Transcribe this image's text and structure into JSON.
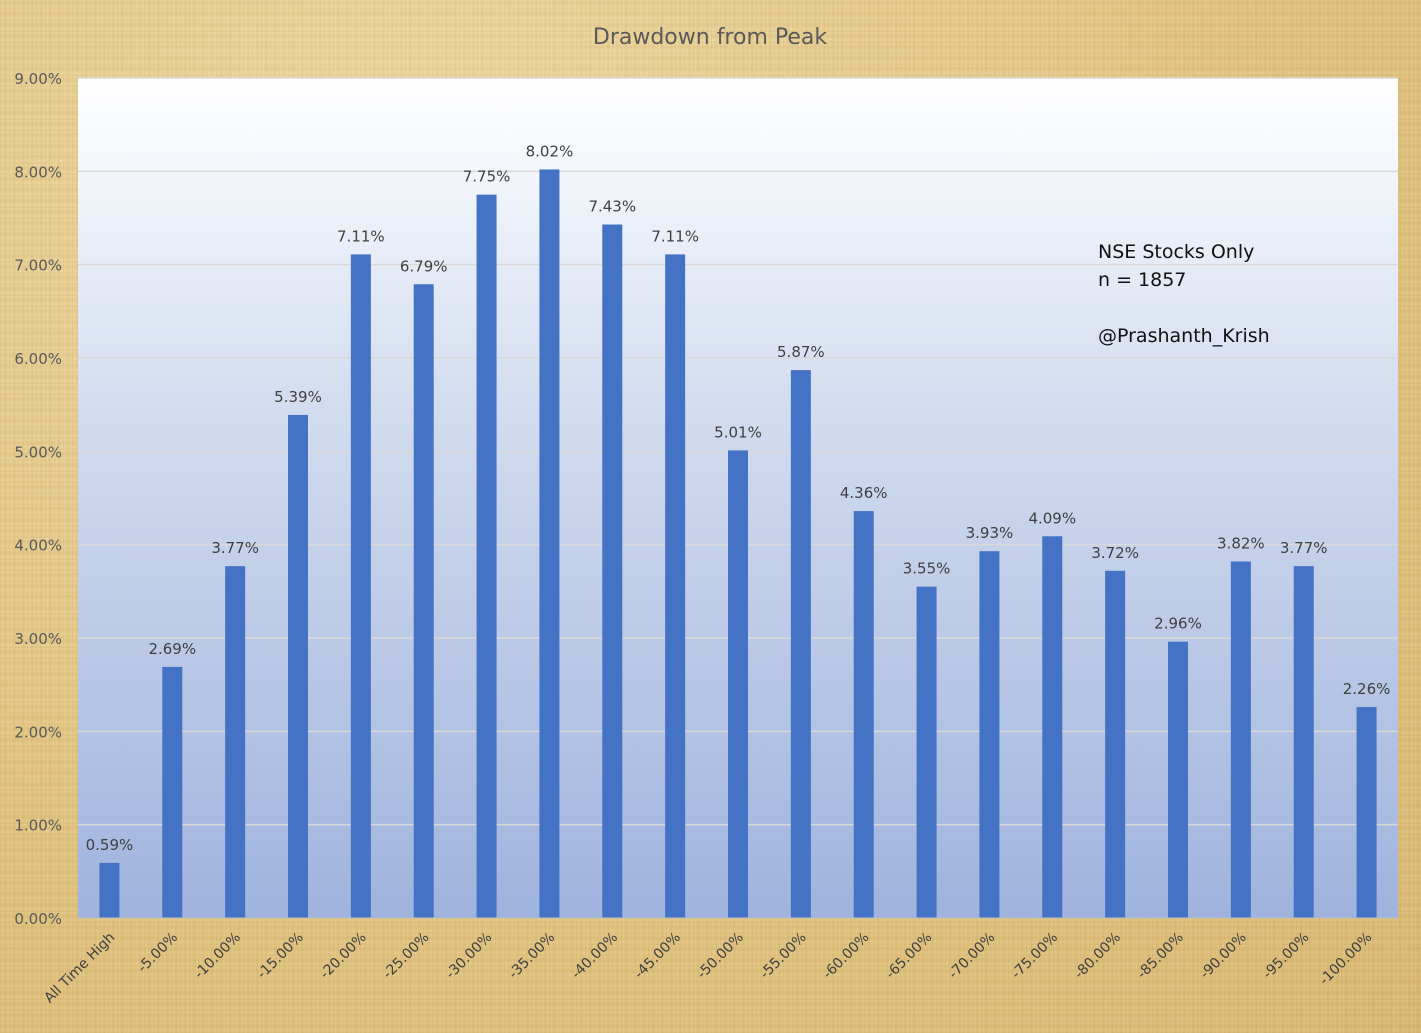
{
  "chart_data": {
    "type": "bar",
    "title": "Drawdown from Peak",
    "categories": [
      "All Time High",
      "-5.00%",
      "-10.00%",
      "-15.00%",
      "-20.00%",
      "-25.00%",
      "-30.00%",
      "-35.00%",
      "-40.00%",
      "-45.00%",
      "-50.00%",
      "-55.00%",
      "-60.00%",
      "-65.00%",
      "-70.00%",
      "-75.00%",
      "-80.00%",
      "-85.00%",
      "-90.00%",
      "-95.00%",
      "-100.00%"
    ],
    "values": [
      0.59,
      2.69,
      3.77,
      5.39,
      7.11,
      6.79,
      7.75,
      8.02,
      7.43,
      7.11,
      5.01,
      5.87,
      4.36,
      3.55,
      3.93,
      4.09,
      3.72,
      2.96,
      3.82,
      3.77,
      2.26
    ],
    "data_labels": [
      "0.59%",
      "2.69%",
      "3.77%",
      "5.39%",
      "7.11%",
      "6.79%",
      "7.75%",
      "8.02%",
      "7.43%",
      "7.11%",
      "5.01%",
      "5.87%",
      "4.36%",
      "3.55%",
      "3.93%",
      "4.09%",
      "3.72%",
      "2.96%",
      "3.82%",
      "3.77%",
      "2.26%"
    ],
    "ylim": [
      0,
      9
    ],
    "y_ticks": [
      0,
      1,
      2,
      3,
      4,
      5,
      6,
      7,
      8,
      9
    ],
    "y_tick_labels": [
      "0.00%",
      "1.00%",
      "2.00%",
      "3.00%",
      "4.00%",
      "5.00%",
      "6.00%",
      "7.00%",
      "8.00%",
      "9.00%"
    ],
    "xlabel": "",
    "ylabel": "",
    "grid": true,
    "legend": "none",
    "bar_color": "#4472c4",
    "annotations": [
      "NSE Stocks Only",
      "n = 1857",
      "@Prashanth_Krish"
    ]
  }
}
